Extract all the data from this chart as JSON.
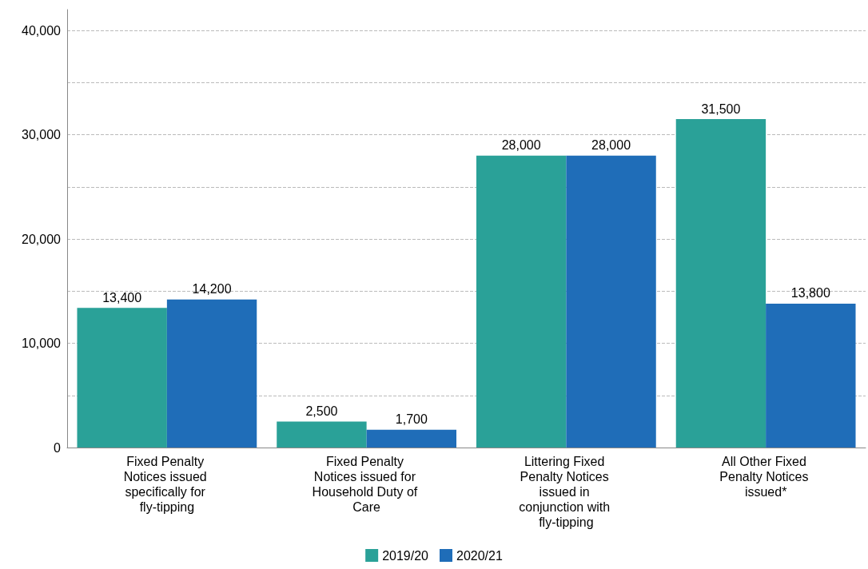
{
  "chart_data": {
    "type": "bar",
    "categories": [
      "Fixed Penalty Notices issued specifically for fly-tipping",
      "Fixed Penalty Notices issued for Household Duty of Care",
      "Littering Fixed Penalty Notices issued in conjunction with fly-tipping",
      "All Other Fixed Penalty Notices issued*"
    ],
    "series": [
      {
        "name": "2019/20",
        "color": "#2aa198",
        "values": [
          13400,
          2500,
          28000,
          31500
        ],
        "value_labels": [
          "13,400",
          "2,500",
          "28,000",
          "31,500"
        ]
      },
      {
        "name": "2020/21",
        "color": "#1f6db8",
        "values": [
          14200,
          1700,
          28000,
          13800
        ],
        "value_labels": [
          "14,200",
          "1,700",
          "28,000",
          "13,800"
        ]
      }
    ],
    "ylim": [
      0,
      42000
    ],
    "yticks": [
      0,
      {
        "value": 5000,
        "label": null
      },
      {
        "value": 10000,
        "label": "10,000"
      },
      {
        "value": 15000,
        "label": null
      },
      {
        "value": 20000,
        "label": "20,000"
      },
      {
        "value": 25000,
        "label": null
      },
      {
        "value": 30000,
        "label": "30,000"
      },
      {
        "value": 35000,
        "label": null
      },
      {
        "value": 40000,
        "label": "40,000"
      }
    ],
    "grid": "y",
    "legend": "bottom"
  }
}
